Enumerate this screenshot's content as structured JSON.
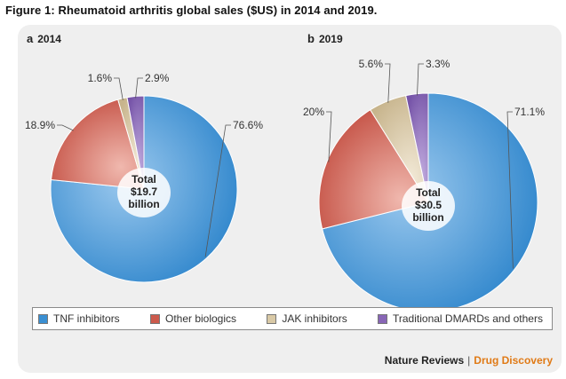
{
  "figure": {
    "title": "Figure 1: Rheumatoid arthritis global sales ($US) in 2014 and 2019."
  },
  "chart_data": [
    {
      "type": "pie",
      "panel_letter": "a",
      "panel_year": "2014",
      "center_text": [
        "Total",
        "$19.7",
        "billion"
      ],
      "categories": [
        "TNF inhibitors",
        "Other biologics",
        "JAK inhibitors",
        "Traditional DMARDs and others"
      ],
      "values": [
        76.6,
        18.9,
        1.6,
        2.9
      ],
      "value_labels": [
        "76.6%",
        "18.9%",
        "1.6%",
        "2.9%"
      ]
    },
    {
      "type": "pie",
      "panel_letter": "b",
      "panel_year": "2019",
      "center_text": [
        "Total",
        "$30.5",
        "billion"
      ],
      "categories": [
        "TNF inhibitors",
        "Other biologics",
        "JAK inhibitors",
        "Traditional DMARDs and others"
      ],
      "values": [
        71.1,
        20,
        5.6,
        3.3
      ],
      "value_labels": [
        "71.1%",
        "20%",
        "5.6%",
        "3.3%"
      ]
    }
  ],
  "legend": {
    "items": [
      {
        "label": "TNF inhibitors",
        "color": "#3a8fd2"
      },
      {
        "label": "Other biologics",
        "color": "#cc5a4c"
      },
      {
        "label": "JAK inhibitors",
        "color": "#d9c9a6"
      },
      {
        "label": "Traditional DMARDs and others",
        "color": "#8866b6"
      }
    ]
  },
  "brand": {
    "name": "Nature Reviews",
    "separator": "|",
    "journal": "Drug Discovery"
  }
}
